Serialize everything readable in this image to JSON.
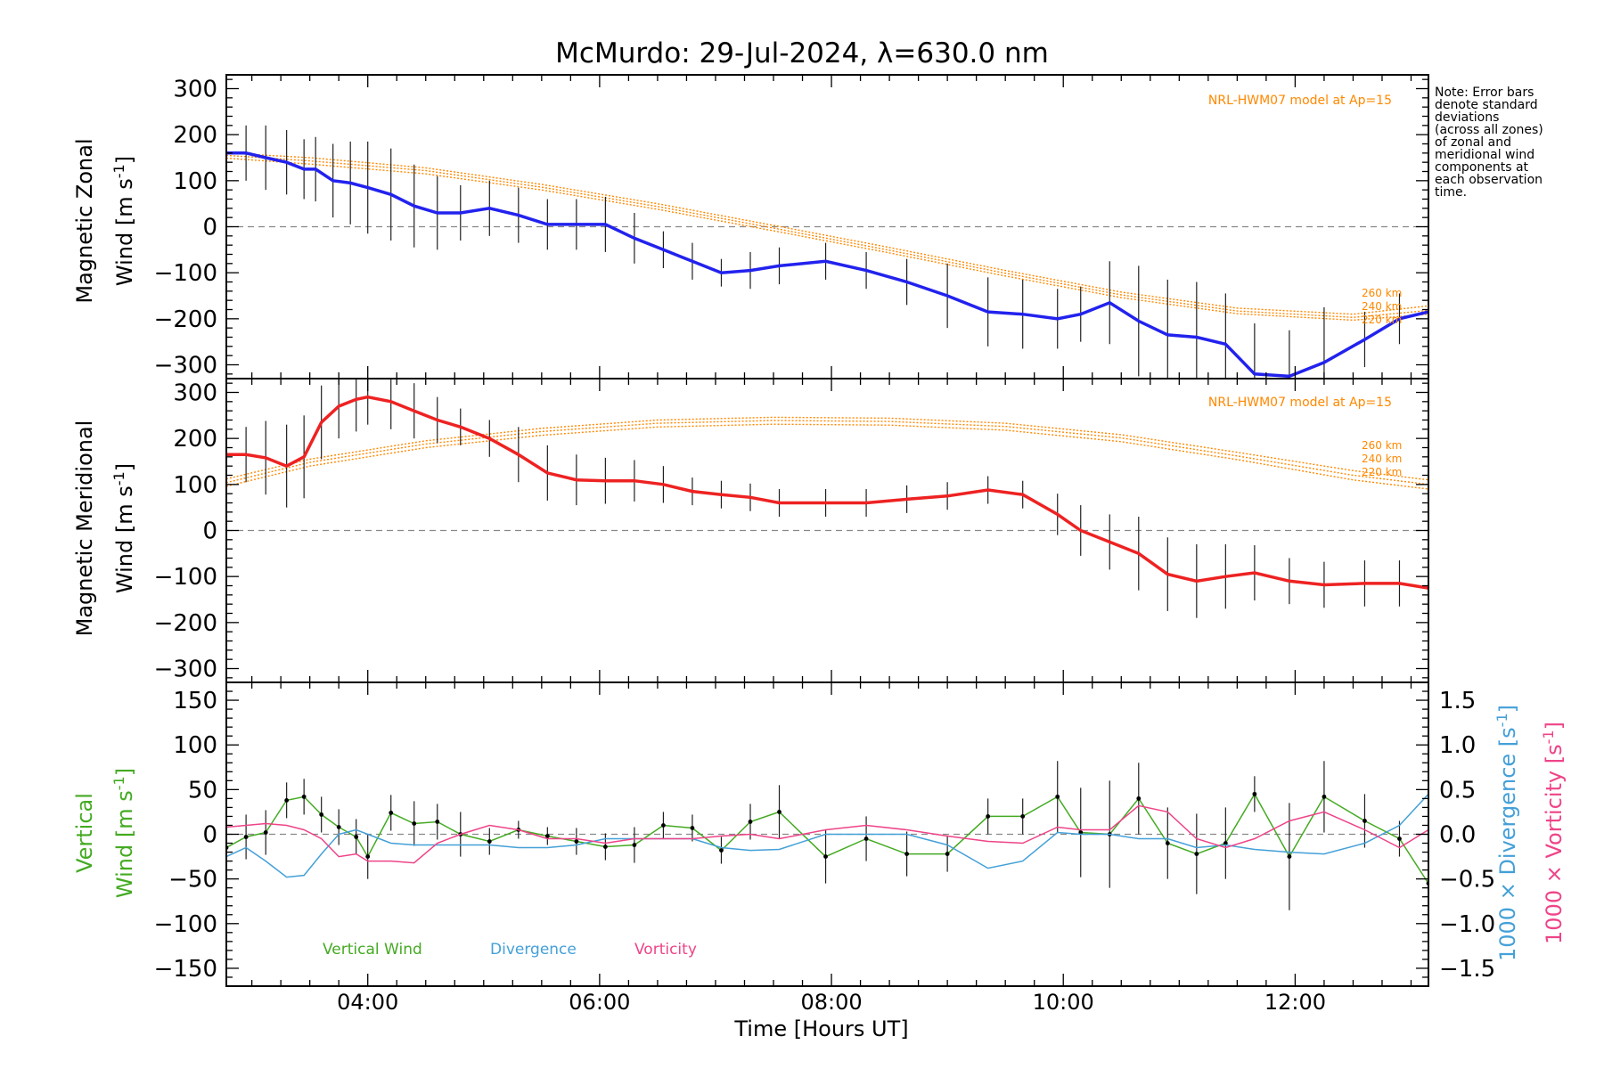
{
  "title": "McMurdo: 29-Jul-2024, λ=630.0 nm",
  "note": [
    "Note: Error bars",
    "denote standard",
    "deviations",
    "(across all zones)",
    "of zonal and",
    "meridional wind",
    "components at",
    "each observation",
    "time."
  ],
  "colors": {
    "zonal": "#2222ee",
    "meridional": "#ee2222",
    "model": "#ff8800",
    "vertical": "#44aa22",
    "divergence": "#44a0d8",
    "vorticity": "#ee4488",
    "errorbar": "#202020",
    "zero_line": "#888888"
  },
  "xaxis": {
    "label": "Time [Hours UT]",
    "range": [
      2.78,
      13.15
    ],
    "ticks": [
      4,
      6,
      8,
      10,
      12
    ],
    "tick_labels": [
      "04:00",
      "06:00",
      "08:00",
      "10:00",
      "12:00"
    ]
  },
  "chart_data": [
    {
      "type": "line",
      "panel": "zonal",
      "ylabel_top": "Magnetic Zonal",
      "ylabel_bottom": "Wind [m s",
      "ylabel_sup": "-1",
      "ylabel_close": "]",
      "ylim": [
        -330,
        330
      ],
      "yticks": [
        300,
        200,
        100,
        0,
        -100,
        -200,
        -300
      ],
      "ytick_labels": [
        "300",
        "200",
        "100",
        "0",
        "−100",
        "−200",
        "−300"
      ],
      "model_label": "NRL-HWM07 model at Ap=15",
      "model_alt_labels": [
        "260 km",
        "240 km",
        "220 km"
      ],
      "model": [
        {
          "name": "260 km",
          "x": [
            2.78,
            3.5,
            4.5,
            5.5,
            6.5,
            7.5,
            8.5,
            9.5,
            10.5,
            11.5,
            12.5,
            13.15
          ],
          "y": [
            160,
            150,
            128,
            92,
            50,
            3,
            -45,
            -95,
            -142,
            -177,
            -190,
            -172
          ]
        },
        {
          "name": "240 km",
          "x": [
            2.78,
            3.5,
            4.5,
            5.5,
            6.5,
            7.5,
            8.5,
            9.5,
            10.5,
            11.5,
            12.5,
            13.15
          ],
          "y": [
            155,
            143,
            122,
            86,
            44,
            -3,
            -51,
            -101,
            -148,
            -183,
            -197,
            -182
          ]
        },
        {
          "name": "220 km",
          "x": [
            2.78,
            3.5,
            4.5,
            5.5,
            6.5,
            7.5,
            8.5,
            9.5,
            10.5,
            11.5,
            12.5,
            13.15
          ],
          "y": [
            149,
            136,
            115,
            80,
            38,
            -9,
            -57,
            -107,
            -154,
            -189,
            -203,
            -190
          ]
        }
      ],
      "series": [
        {
          "name": "Zonal wind",
          "x": [
            2.78,
            2.95,
            3.12,
            3.3,
            3.45,
            3.55,
            3.7,
            3.85,
            4.0,
            4.2,
            4.4,
            4.6,
            4.8,
            5.05,
            5.3,
            5.55,
            5.8,
            6.05,
            6.3,
            6.55,
            6.8,
            7.05,
            7.3,
            7.55,
            7.95,
            8.3,
            8.65,
            9.0,
            9.35,
            9.65,
            9.95,
            10.15,
            10.4,
            10.65,
            10.9,
            11.15,
            11.4,
            11.65,
            11.95,
            12.25,
            12.6,
            12.9,
            13.15
          ],
          "y": [
            160,
            160,
            150,
            140,
            125,
            125,
            100,
            95,
            85,
            70,
            45,
            30,
            30,
            40,
            25,
            5,
            5,
            5,
            -25,
            -50,
            -75,
            -100,
            -95,
            -85,
            -75,
            -95,
            -120,
            -150,
            -185,
            -190,
            -200,
            -190,
            -165,
            -205,
            -235,
            -240,
            -255,
            -320,
            -325,
            -295,
            -245,
            -200,
            -185
          ],
          "err": [
            50,
            60,
            70,
            70,
            65,
            70,
            80,
            90,
            100,
            100,
            90,
            80,
            60,
            60,
            60,
            55,
            55,
            60,
            55,
            40,
            40,
            30,
            40,
            40,
            40,
            40,
            50,
            70,
            75,
            75,
            65,
            60,
            90,
            120,
            120,
            120,
            110,
            110,
            100,
            120,
            60,
            55,
            75
          ]
        }
      ]
    },
    {
      "type": "line",
      "panel": "meridional",
      "ylabel_top": "Magnetic Meridional",
      "ylabel_bottom": "Wind [m s",
      "ylabel_sup": "-1",
      "ylabel_close": "]",
      "ylim": [
        -330,
        330
      ],
      "yticks": [
        300,
        200,
        100,
        0,
        -100,
        -200,
        -300
      ],
      "ytick_labels": [
        "300",
        "200",
        "100",
        "0",
        "−100",
        "−200",
        "−300"
      ],
      "model_label": "NRL-HWM07 model at Ap=15",
      "model_alt_labels": [
        "260 km",
        "240 km",
        "220 km"
      ],
      "model": [
        {
          "name": "260 km",
          "x": [
            2.78,
            3.5,
            4.5,
            5.5,
            6.5,
            7.5,
            8.5,
            9.5,
            10.5,
            11.5,
            12.5,
            13.15
          ],
          "y": [
            112,
            155,
            195,
            222,
            240,
            246,
            244,
            233,
            208,
            170,
            130,
            110
          ]
        },
        {
          "name": "240 km",
          "x": [
            2.78,
            3.5,
            4.5,
            5.5,
            6.5,
            7.5,
            8.5,
            9.5,
            10.5,
            11.5,
            12.5,
            13.15
          ],
          "y": [
            104,
            148,
            188,
            215,
            233,
            239,
            237,
            226,
            201,
            162,
            120,
            100
          ]
        },
        {
          "name": "220 km",
          "x": [
            2.78,
            3.5,
            4.5,
            5.5,
            6.5,
            7.5,
            8.5,
            9.5,
            10.5,
            11.5,
            12.5,
            13.15
          ],
          "y": [
            96,
            140,
            180,
            207,
            225,
            231,
            229,
            218,
            193,
            154,
            110,
            90
          ]
        }
      ],
      "series": [
        {
          "name": "Meridional wind",
          "x": [
            2.78,
            2.95,
            3.12,
            3.3,
            3.45,
            3.6,
            3.75,
            3.9,
            4.0,
            4.2,
            4.4,
            4.6,
            4.8,
            5.05,
            5.3,
            5.55,
            5.8,
            6.05,
            6.3,
            6.55,
            6.8,
            7.05,
            7.3,
            7.55,
            7.95,
            8.3,
            8.65,
            9.0,
            9.35,
            9.65,
            9.95,
            10.15,
            10.4,
            10.65,
            10.9,
            11.15,
            11.4,
            11.65,
            11.95,
            12.25,
            12.6,
            12.9,
            13.15
          ],
          "y": [
            165,
            165,
            158,
            140,
            160,
            235,
            270,
            285,
            290,
            280,
            260,
            240,
            225,
            200,
            165,
            125,
            110,
            108,
            108,
            100,
            85,
            78,
            72,
            60,
            60,
            60,
            68,
            75,
            88,
            78,
            35,
            0,
            -25,
            -50,
            -95,
            -110,
            -100,
            -92,
            -110,
            -118,
            -115,
            -115,
            -125
          ],
          "err": [
            70,
            60,
            80,
            90,
            90,
            80,
            70,
            70,
            60,
            60,
            60,
            50,
            40,
            40,
            60,
            60,
            55,
            50,
            45,
            40,
            30,
            30,
            30,
            30,
            30,
            30,
            30,
            30,
            30,
            30,
            45,
            55,
            60,
            80,
            80,
            80,
            70,
            60,
            50,
            50,
            50,
            50,
            100
          ]
        }
      ]
    },
    {
      "type": "line",
      "panel": "vertical",
      "ylabel_top": "Vertical",
      "ylabel_bottom": "Wind [m s",
      "ylabel_sup": "-1",
      "ylabel_close": "]",
      "ylim": [
        -170,
        170
      ],
      "yticks": [
        150,
        100,
        50,
        0,
        -50,
        -100,
        -150
      ],
      "ytick_labels": [
        "150",
        "100",
        "50",
        "0",
        "−50",
        "−100",
        "−150"
      ],
      "y2lim": [
        -1.7,
        1.7
      ],
      "y2ticks": [
        1.5,
        1.0,
        0.5,
        0.0,
        -0.5,
        -1.0,
        -1.5
      ],
      "y2tick_labels": [
        "1.5",
        "1.0",
        "0.5",
        "0.0",
        "−0.5",
        "−1.0",
        "−1.5"
      ],
      "y2label_div": "1000 × Divergence [s",
      "y2label_vort": "1000 × Vorticity [s",
      "y2label_sup": "-1",
      "y2label_close": "]",
      "legend": [
        "Vertical Wind",
        "Divergence",
        "Vorticity"
      ],
      "series": [
        {
          "name": "Vertical Wind",
          "x": [
            2.78,
            2.95,
            3.12,
            3.3,
            3.45,
            3.6,
            3.75,
            3.9,
            4.0,
            4.2,
            4.4,
            4.6,
            4.8,
            5.05,
            5.3,
            5.55,
            5.8,
            6.05,
            6.3,
            6.55,
            6.8,
            7.05,
            7.3,
            7.55,
            7.95,
            8.3,
            8.65,
            9.0,
            9.35,
            9.65,
            9.95,
            10.15,
            10.4,
            10.65,
            10.9,
            11.15,
            11.4,
            11.65,
            11.95,
            12.25,
            12.6,
            12.9,
            13.15
          ],
          "y": [
            -15,
            -3,
            2,
            38,
            42,
            22,
            8,
            -3,
            -25,
            24,
            12,
            14,
            0,
            -8,
            5,
            -2,
            -8,
            -14,
            -12,
            10,
            7,
            -18,
            14,
            25,
            -25,
            -5,
            -22,
            -22,
            20,
            20,
            42,
            2,
            0,
            40,
            -10,
            -22,
            -10,
            45,
            -25,
            42,
            15,
            -5,
            -55
          ],
          "err": [
            20,
            25,
            25,
            20,
            20,
            20,
            20,
            20,
            25,
            20,
            25,
            20,
            25,
            15,
            10,
            10,
            15,
            15,
            20,
            15,
            15,
            15,
            20,
            30,
            30,
            25,
            25,
            20,
            20,
            20,
            40,
            50,
            60,
            40,
            40,
            45,
            40,
            20,
            60,
            40,
            30,
            20,
            10
          ]
        },
        {
          "name": "Divergence",
          "x": [
            2.78,
            2.95,
            3.12,
            3.3,
            3.45,
            3.6,
            3.75,
            3.9,
            4.0,
            4.2,
            4.4,
            4.6,
            4.8,
            5.05,
            5.3,
            5.55,
            5.8,
            6.05,
            6.3,
            6.55,
            6.8,
            7.05,
            7.3,
            7.55,
            7.95,
            8.3,
            8.65,
            9.0,
            9.35,
            9.65,
            9.95,
            10.15,
            10.4,
            10.65,
            10.9,
            11.15,
            11.4,
            11.65,
            11.95,
            12.25,
            12.6,
            12.9,
            13.15
          ],
          "y": [
            -0.25,
            -0.15,
            -0.3,
            -0.48,
            -0.46,
            -0.22,
            0.0,
            0.05,
            0.0,
            -0.1,
            -0.12,
            -0.12,
            -0.12,
            -0.12,
            -0.15,
            -0.15,
            -0.12,
            -0.05,
            -0.05,
            -0.05,
            -0.05,
            -0.15,
            -0.18,
            -0.17,
            0.0,
            0.0,
            0.0,
            -0.12,
            -0.38,
            -0.3,
            0.02,
            0.0,
            0.0,
            -0.05,
            -0.05,
            -0.15,
            -0.12,
            -0.17,
            -0.2,
            -0.22,
            -0.1,
            0.1,
            0.45
          ]
        },
        {
          "name": "Vorticity",
          "x": [
            2.78,
            2.95,
            3.12,
            3.3,
            3.45,
            3.6,
            3.75,
            3.9,
            4.0,
            4.2,
            4.4,
            4.6,
            4.8,
            5.05,
            5.3,
            5.55,
            5.8,
            6.05,
            6.3,
            6.55,
            6.8,
            7.05,
            7.3,
            7.55,
            7.95,
            8.3,
            8.65,
            9.0,
            9.35,
            9.65,
            9.95,
            10.15,
            10.4,
            10.65,
            10.9,
            11.15,
            11.4,
            11.65,
            11.95,
            12.25,
            12.6,
            12.9,
            13.15
          ],
          "y": [
            0.08,
            0.1,
            0.12,
            0.1,
            0.05,
            -0.05,
            -0.25,
            -0.22,
            -0.3,
            -0.3,
            -0.32,
            -0.1,
            0.0,
            0.1,
            0.05,
            -0.05,
            -0.05,
            -0.1,
            -0.05,
            -0.05,
            -0.05,
            -0.02,
            0.0,
            -0.05,
            0.05,
            0.1,
            0.05,
            -0.02,
            -0.08,
            -0.1,
            0.08,
            0.05,
            0.05,
            0.32,
            0.25,
            -0.05,
            -0.15,
            -0.05,
            0.15,
            0.25,
            0.05,
            -0.15,
            0.05
          ]
        }
      ]
    }
  ]
}
